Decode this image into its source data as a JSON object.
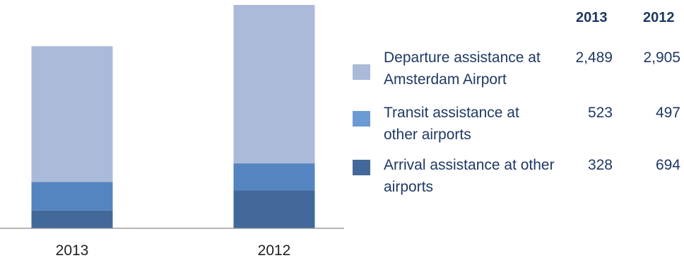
{
  "chart_data": {
    "type": "bar",
    "stacked": true,
    "categories": [
      "2013",
      "2012"
    ],
    "series": [
      {
        "name": "Arrival assistance at other airports",
        "values": [
          328,
          694
        ],
        "color": "#43699a"
      },
      {
        "name": "Transit assistance at other airports",
        "values": [
          523,
          497
        ],
        "color": "#5485c0"
      },
      {
        "name": "Departure assistance at Amsterdam Airport",
        "values": [
          2489,
          2905
        ],
        "color": "#abbad9"
      }
    ],
    "legend": {
      "column_headers": [
        "2013",
        "2012"
      ],
      "rows": [
        {
          "label": "Departure assistance at Amsterdam Airport",
          "v2013": "2,489",
          "v2012": "2,905",
          "color": "#abbad9"
        },
        {
          "label": "Transit assistance at other airports",
          "v2013": "523",
          "v2012": "497",
          "color": "#5485c0"
        },
        {
          "label": "Arrival assistance at other airports",
          "v2013": "328",
          "v2012": "694",
          "color": "#43699a"
        }
      ]
    },
    "legend_placement": "right",
    "grid": false
  }
}
